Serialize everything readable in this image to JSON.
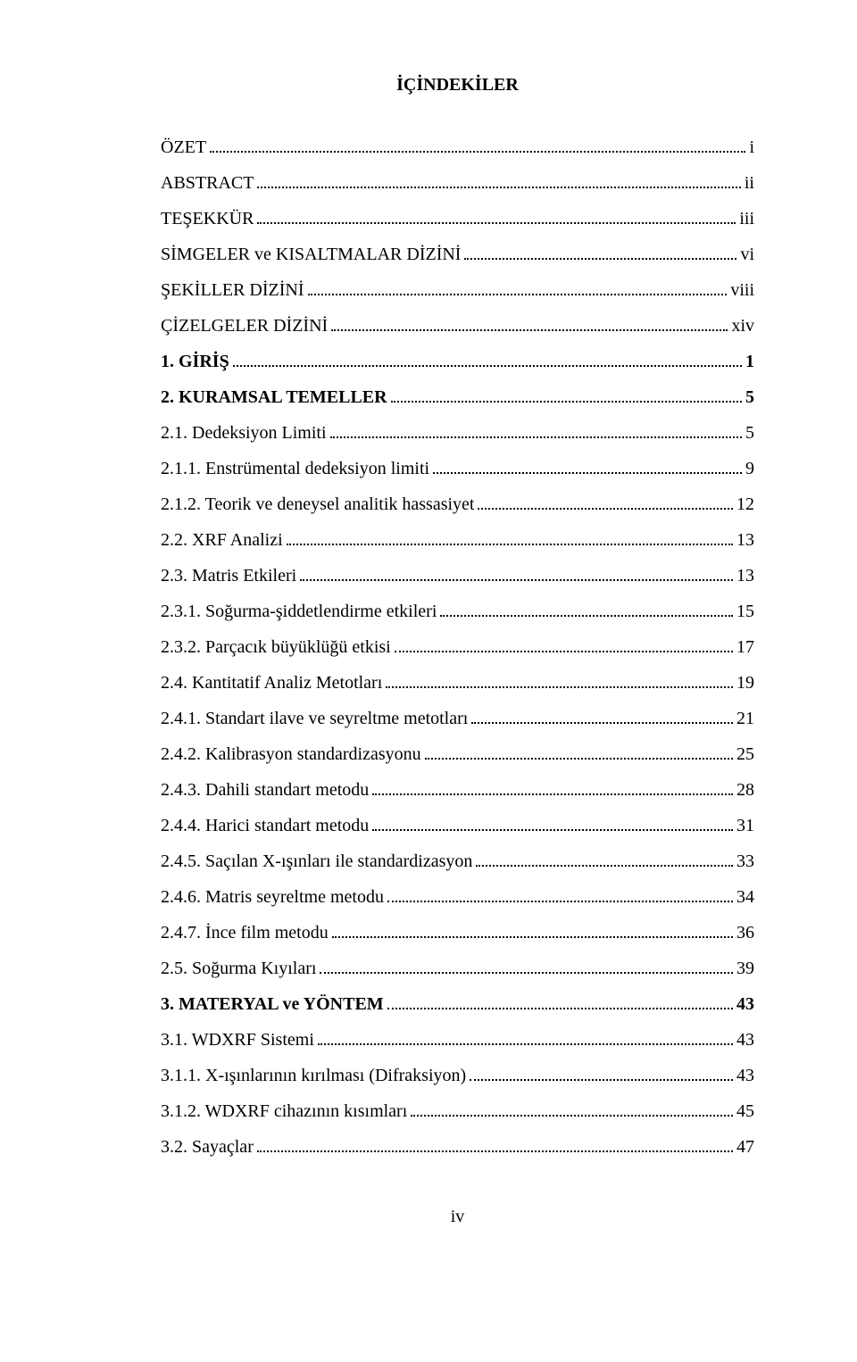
{
  "title": "İÇİNDEKİLER",
  "entries": [
    {
      "label": "ÖZET",
      "page": "i",
      "bold": false
    },
    {
      "label": "ABSTRACT",
      "page": "ii",
      "bold": false
    },
    {
      "label": "TEŞEKKÜR",
      "page": "iii",
      "bold": false
    },
    {
      "label": "SİMGELER ve KISALTMALAR DİZİNİ",
      "page": "vi",
      "bold": false
    },
    {
      "label": "ŞEKİLLER DİZİNİ",
      "page": "viii",
      "bold": false
    },
    {
      "label": "ÇİZELGELER DİZİNİ",
      "page": "xiv",
      "bold": false
    },
    {
      "label": "1. GİRİŞ",
      "page": "1",
      "bold": true
    },
    {
      "label": "2. KURAMSAL TEMELLER",
      "page": "5",
      "bold": true
    },
    {
      "label": "2.1. Dedeksiyon Limiti",
      "page": "5",
      "bold": false
    },
    {
      "label": "2.1.1. Enstrümental dedeksiyon limiti",
      "page": "9",
      "bold": false
    },
    {
      "label": "2.1.2. Teorik ve deneysel analitik hassasiyet",
      "page": "12",
      "bold": false
    },
    {
      "label": "2.2. XRF Analizi",
      "page": "13",
      "bold": false
    },
    {
      "label": "2.3. Matris Etkileri",
      "page": "13",
      "bold": false
    },
    {
      "label": "2.3.1. Soğurma-şiddetlendirme etkileri",
      "page": "15",
      "bold": false
    },
    {
      "label": "2.3.2. Parçacık büyüklüğü etkisi",
      "page": "17",
      "bold": false
    },
    {
      "label": "2.4. Kantitatif Analiz Metotları",
      "page": "19",
      "bold": false
    },
    {
      "label": "2.4.1. Standart ilave ve seyreltme metotları",
      "page": "21",
      "bold": false
    },
    {
      "label": "2.4.2. Kalibrasyon standardizasyonu",
      "page": "25",
      "bold": false
    },
    {
      "label": "2.4.3. Dahili standart metodu",
      "page": "28",
      "bold": false
    },
    {
      "label": "2.4.4. Harici standart metodu",
      "page": "31",
      "bold": false
    },
    {
      "label": "2.4.5. Saçılan X-ışınları ile standardizasyon",
      "page": "33",
      "bold": false
    },
    {
      "label": "2.4.6. Matris seyreltme metodu",
      "page": "34",
      "bold": false
    },
    {
      "label": "2.4.7. İnce film metodu",
      "page": "36",
      "bold": false
    },
    {
      "label": "2.5. Soğurma Kıyıları",
      "page": "39",
      "bold": false
    },
    {
      "label": "3. MATERYAL ve YÖNTEM",
      "page": "43",
      "bold": true
    },
    {
      "label": "3.1. WDXRF Sistemi",
      "page": "43",
      "bold": false
    },
    {
      "label": "3.1.1. X-ışınlarının kırılması (Difraksiyon)",
      "page": "43",
      "bold": false
    },
    {
      "label": "3.1.2. WDXRF cihazının kısımları",
      "page": "45",
      "bold": false
    },
    {
      "label": "3.2. Sayaçlar",
      "page": "47",
      "bold": false
    }
  ],
  "page_number": "iv"
}
